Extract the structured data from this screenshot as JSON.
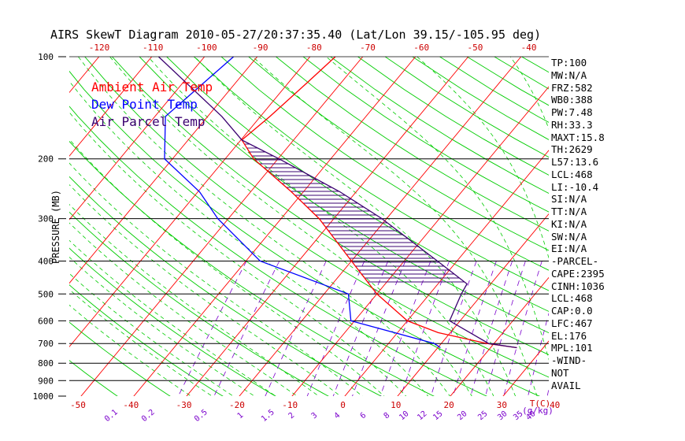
{
  "chart_data": {
    "type": "line",
    "title": "AIRS SkewT Diagram 2010-05-27/20:37:35.40 (Lat/Lon 39.15/-105.95 deg)",
    "ylabel": "PRESSURE (MB)",
    "xlabel": "T(C)",
    "mixing_ratio_unit": "(g/kg)",
    "y_scale": "log",
    "ylim": [
      1000,
      100
    ],
    "pressure_ticks": [
      "100",
      "200",
      "300",
      "400",
      "500",
      "600",
      "700",
      "800",
      "900",
      "1000"
    ],
    "bottom_temp_ticks": [
      "-50",
      "-40",
      "-30",
      "-20",
      "-10",
      "0",
      "10",
      "20",
      "30",
      "40"
    ],
    "top_temp_ticks": [
      "-120",
      "-110",
      "-100",
      "-90",
      "-80",
      "-70",
      "-60",
      "-50",
      "-40"
    ],
    "mixing_ratio_ticks": [
      "0.1",
      "0.2",
      "0.5",
      "1",
      "1.5",
      "2",
      "3",
      "4",
      "6",
      "8",
      "10",
      "12",
      "15",
      "20",
      "25",
      "30",
      "35",
      "40"
    ],
    "legend": [
      {
        "label": "Ambient Air Temp",
        "color": "#ff0000"
      },
      {
        "label": "Dew Point Temp",
        "color": "#0000ff"
      },
      {
        "label": "Air Parcel Temp",
        "color": "#3a0070"
      }
    ],
    "series": [
      {
        "name": "Ambient Air Temp",
        "color": "#ff0000",
        "points": [
          [
            100,
            -65.2
          ],
          [
            120,
            -66.5
          ],
          [
            150,
            -68.2
          ],
          [
            176,
            -69.8
          ],
          [
            200,
            -64.6
          ],
          [
            250,
            -52.3
          ],
          [
            300,
            -42.8
          ],
          [
            400,
            -30.0
          ],
          [
            500,
            -20.0
          ],
          [
            600,
            -10.0
          ],
          [
            650,
            -2.3
          ],
          [
            700,
            8.7
          ],
          [
            720,
            15.0
          ]
        ]
      },
      {
        "name": "Dew Point Temp",
        "color": "#0000ff",
        "points": [
          [
            100,
            -84.5
          ],
          [
            150,
            -88.0
          ],
          [
            200,
            -81.5
          ],
          [
            250,
            -69.7
          ],
          [
            300,
            -62.0
          ],
          [
            400,
            -47.3
          ],
          [
            500,
            -25.4
          ],
          [
            600,
            -20.7
          ],
          [
            700,
            -1.3
          ],
          [
            720,
            0.5
          ]
        ]
      },
      {
        "name": "Air Parcel Temp",
        "color": "#3a0070",
        "points": [
          [
            100,
            -98.7
          ],
          [
            150,
            -77.3
          ],
          [
            176,
            -69.8
          ],
          [
            200,
            -59.8
          ],
          [
            250,
            -43.1
          ],
          [
            300,
            -30.9
          ],
          [
            400,
            -13.7
          ],
          [
            467,
            -4.5
          ],
          [
            500,
            -4.0
          ],
          [
            600,
            -2.0
          ],
          [
            700,
            9.0
          ],
          [
            720,
            15.0
          ]
        ]
      }
    ]
  },
  "stats": {
    "lines": [
      "TP:100",
      "MW:N/A",
      "FRZ:582",
      "WB0:388",
      "PW:7.48",
      "RH:33.3",
      "MAXT:15.8",
      "TH:2629",
      "L57:13.6",
      "LCL:468",
      "LI:-10.4",
      "SI:N/A",
      "TT:N/A",
      "KI:N/A",
      "SW:N/A",
      "EI:N/A",
      "-PARCEL-",
      "CAPE:2395",
      "CINH:1036",
      "LCL:468",
      "CAP:0.0",
      "LFC:467",
      "EL:176",
      "MPL:101",
      "-WIND-",
      "NOT",
      "AVAIL"
    ]
  },
  "colors": {
    "isotherm": "#ff0000",
    "dry_adiabat": "#00cc00",
    "moist_adiabat": "#00cc00",
    "mixing_ratio": "#7a00cc",
    "bottom_axis": "#cc0000",
    "top_axis": "#cc0000",
    "mixing_axis": "#7a00cc",
    "hatch": "#3a0070"
  }
}
